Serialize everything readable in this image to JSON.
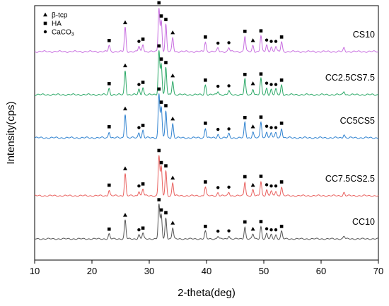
{
  "chart_data": {
    "type": "line",
    "xlabel": "2-theta(deg)",
    "ylabel": "Intensity(cps)",
    "xlim": [
      10,
      70
    ],
    "x_ticks": [
      10,
      20,
      30,
      40,
      50,
      60,
      70
    ],
    "grid": false,
    "legend_position": "top-left",
    "legend": [
      {
        "symbol": "triangle",
        "label": "β-tcp"
      },
      {
        "symbol": "square",
        "label": "HA"
      },
      {
        "symbol": "circle",
        "label": "CaCO",
        "subscript": "3"
      }
    ],
    "peaks": [
      {
        "x": 23.0,
        "h": 0.14,
        "marker": "square"
      },
      {
        "x": 25.8,
        "h": 0.55,
        "marker": "triangle"
      },
      {
        "x": 28.2,
        "h": 0.12,
        "marker": "circle"
      },
      {
        "x": 28.9,
        "h": 0.17,
        "marker": "square"
      },
      {
        "x": 31.7,
        "h": 1.0,
        "marker": "square"
      },
      {
        "x": 32.1,
        "h": 0.7,
        "marker": "square"
      },
      {
        "x": 32.9,
        "h": 0.62,
        "marker": "square"
      },
      {
        "x": 34.1,
        "h": 0.32,
        "marker": "triangle"
      },
      {
        "x": 39.8,
        "h": 0.22,
        "marker": "square"
      },
      {
        "x": 42.0,
        "h": 0.08,
        "marker": "circle"
      },
      {
        "x": 43.9,
        "h": 0.09,
        "marker": "circle"
      },
      {
        "x": 46.7,
        "h": 0.35,
        "marker": "square"
      },
      {
        "x": 48.1,
        "h": 0.14,
        "marker": "triangle"
      },
      {
        "x": 49.5,
        "h": 0.36,
        "marker": "square"
      },
      {
        "x": 50.5,
        "h": 0.15,
        "marker": "circle"
      },
      {
        "x": 51.3,
        "h": 0.12,
        "marker": "circle"
      },
      {
        "x": 52.1,
        "h": 0.12,
        "marker": "circle"
      },
      {
        "x": 53.1,
        "h": 0.22,
        "marker": "square"
      },
      {
        "x": 64.0,
        "h": 0.08,
        "marker": null
      }
    ],
    "series": [
      {
        "name": "CS10",
        "color": "#c86ee0",
        "scale": 1.0
      },
      {
        "name": "CC2.5CS7.5",
        "color": "#2aa866",
        "scale": 1.0
      },
      {
        "name": "CC5CS5",
        "color": "#2f82d0",
        "scale": 1.0
      },
      {
        "name": "CC7.5CS2.5",
        "color": "#e9605e",
        "scale": 0.92
      },
      {
        "name": "CC10",
        "color": "#555555",
        "scale": 0.78
      }
    ]
  }
}
